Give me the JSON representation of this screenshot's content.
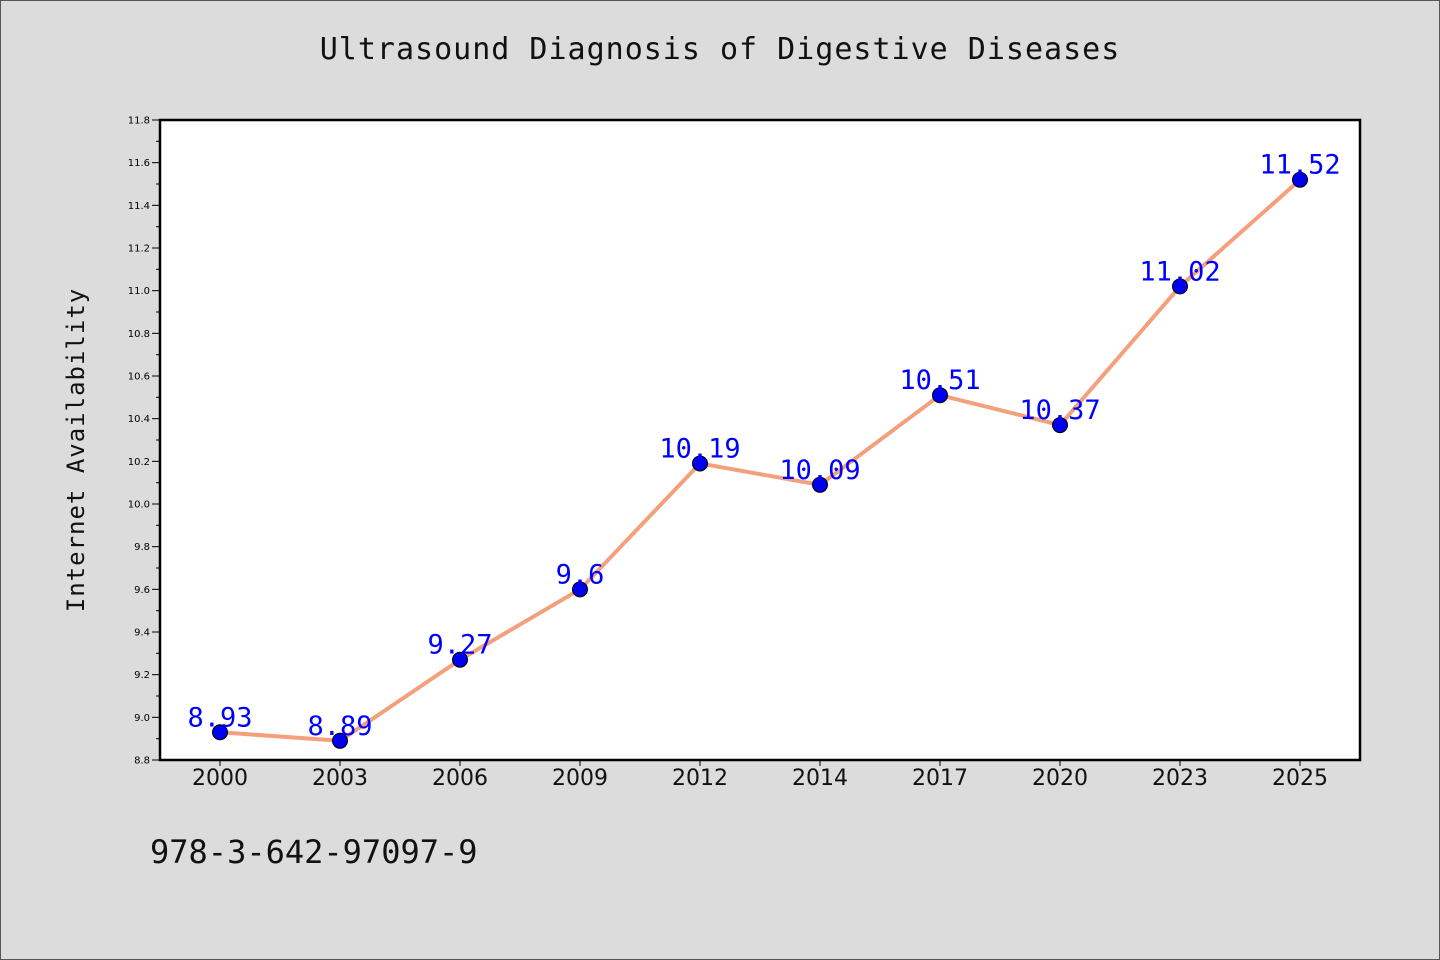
{
  "chart_data": {
    "type": "line",
    "title": "Ultrasound Diagnosis of Digestive Diseases",
    "xlabel": "",
    "ylabel": "Internet Availability",
    "categories": [
      "2000",
      "2003",
      "2006",
      "2009",
      "2012",
      "2014",
      "2017",
      "2020",
      "2023",
      "2025"
    ],
    "values": [
      8.93,
      8.89,
      9.27,
      9.6,
      10.19,
      10.09,
      10.51,
      10.37,
      11.02,
      11.52
    ],
    "value_labels": [
      "8.93",
      "8.89",
      "9.27",
      "9.6",
      "10.19",
      "10.09",
      "10.51",
      "10.37",
      "11.02",
      "11.52"
    ],
    "ylim": [
      8.8,
      11.8
    ],
    "yticks": [
      "8.8",
      "9.0",
      "9.2",
      "9.4",
      "9.6",
      "9.8",
      "10.0",
      "10.2",
      "10.4",
      "10.6",
      "10.8",
      "11.0",
      "11.2",
      "11.4",
      "11.6",
      "11.8"
    ],
    "grid": false,
    "legend": "none",
    "colors": {
      "line": "#f4a07c",
      "marker": "#0000ee",
      "label": "#0000ff",
      "background": "#dcdcdc",
      "plot_area": "#ffffff"
    }
  },
  "footer": {
    "isbn": "978-3-642-97097-9"
  }
}
